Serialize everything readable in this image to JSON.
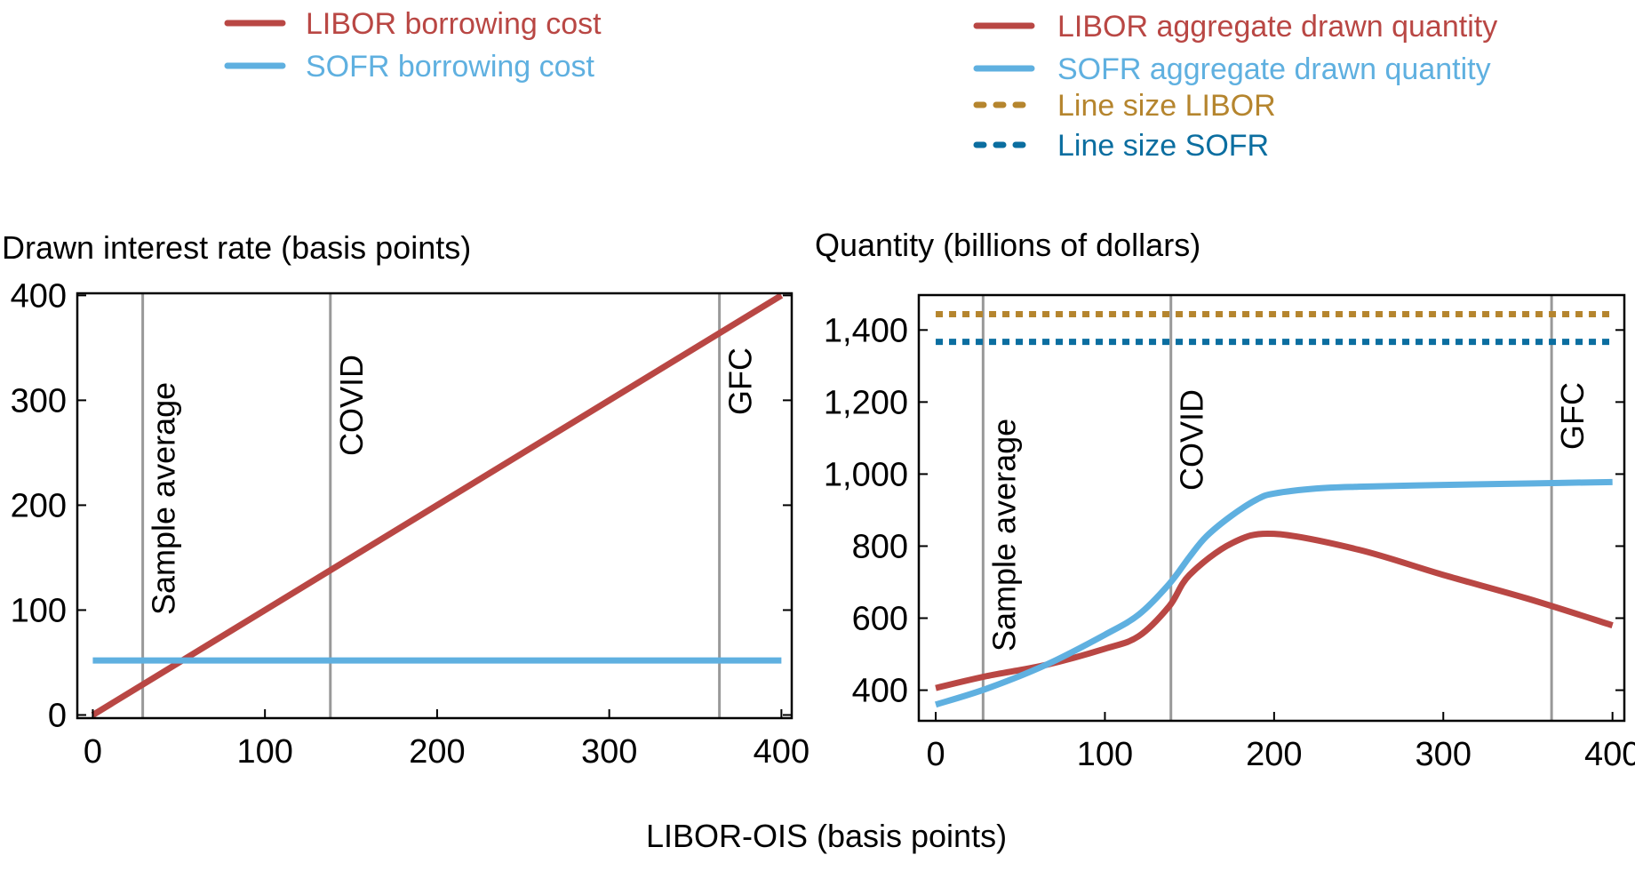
{
  "colors": {
    "libor": "#b94744",
    "sofr": "#5fb0e0",
    "line_size_libor": "#b5852e",
    "line_size_sofr": "#0b6ea0",
    "event_line": "#999999"
  },
  "shared_xlabel": "LIBOR-OIS (basis points)",
  "chart_data": [
    {
      "type": "line",
      "title": "Drawn interest rate (basis points)",
      "xlabel": "LIBOR-OIS (basis points)",
      "ylabel": "",
      "xlim": [
        -9,
        406
      ],
      "ylim": [
        -3,
        402
      ],
      "xticks": [
        0,
        100,
        200,
        300,
        400
      ],
      "yticks": [
        0,
        100,
        200,
        300,
        400
      ],
      "xtick_labels": [
        "0",
        "100",
        "200",
        "300",
        "400"
      ],
      "ytick_labels": [
        "0",
        "100",
        "200",
        "300",
        "400"
      ],
      "grid": false,
      "legend": "top-left",
      "vlines": [
        {
          "x": 29,
          "label": "Sample average"
        },
        {
          "x": 138,
          "label": "COVID"
        },
        {
          "x": 364,
          "label": "GFC"
        }
      ],
      "series": [
        {
          "name": "LIBOR borrowing cost",
          "color": "#b94744",
          "style": "solid",
          "x": [
            0,
            400
          ],
          "y": [
            0,
            400
          ]
        },
        {
          "name": "SOFR borrowing cost",
          "color": "#5fb0e0",
          "style": "solid",
          "x": [
            0,
            400
          ],
          "y": [
            52,
            52
          ]
        }
      ]
    },
    {
      "type": "line",
      "title": "Quantity (billions of dollars)",
      "xlabel": "LIBOR-OIS (basis points)",
      "ylabel": "",
      "xlim": [
        -10,
        407
      ],
      "ylim": [
        315,
        1497
      ],
      "xticks": [
        0,
        100,
        200,
        300,
        400
      ],
      "yticks": [
        400,
        600,
        800,
        1000,
        1200,
        1400
      ],
      "xtick_labels": [
        "0",
        "100",
        "200",
        "300",
        "400"
      ],
      "ytick_labels": [
        "400",
        "600",
        "800",
        "1,000",
        "1,200",
        "1,400"
      ],
      "grid": false,
      "legend": "top-right",
      "vlines": [
        {
          "x": 28,
          "label": "Sample average"
        },
        {
          "x": 139,
          "label": "COVID"
        },
        {
          "x": 364,
          "label": "GFC"
        }
      ],
      "series": [
        {
          "name": "LIBOR aggregate drawn quantity",
          "color": "#b94744",
          "style": "solid",
          "x": [
            0,
            30,
            65,
            100,
            120,
            138,
            150,
            175,
            200,
            250,
            300,
            350,
            400
          ],
          "y": [
            406,
            439,
            470,
            515,
            550,
            633,
            720,
            808,
            834,
            790,
            720,
            654,
            580
          ]
        },
        {
          "name": "SOFR aggregate drawn quantity",
          "color": "#5fb0e0",
          "style": "solid",
          "x": [
            0,
            30,
            65,
            100,
            120,
            138,
            150,
            160,
            175,
            190,
            200,
            225,
            250,
            300,
            350,
            400
          ],
          "y": [
            360,
            404,
            470,
            554,
            610,
            695,
            770,
            827,
            885,
            930,
            946,
            960,
            965,
            970,
            974,
            978
          ]
        },
        {
          "name": "Line size LIBOR",
          "color": "#b5852e",
          "style": "dotted",
          "x": [
            0,
            400
          ],
          "y": [
            1444,
            1444
          ]
        },
        {
          "name": "Line size SOFR",
          "color": "#0b6ea0",
          "style": "dotted",
          "x": [
            0,
            400
          ],
          "y": [
            1367,
            1367
          ]
        }
      ]
    }
  ]
}
